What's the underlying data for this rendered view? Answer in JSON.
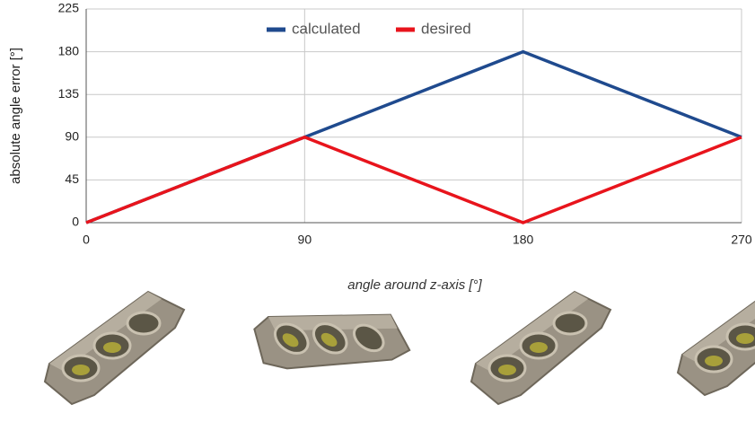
{
  "chart_data": {
    "type": "line",
    "x_label": "angle around z-axis [°]",
    "y_label": "absolute angle error [°]",
    "x": [
      0,
      90,
      180,
      270
    ],
    "series": [
      {
        "name": "calculated",
        "color": "#1f4a8e",
        "values": [
          0,
          90,
          180,
          90
        ]
      },
      {
        "name": "desired",
        "color": "#e8141c",
        "values": [
          0,
          90,
          0,
          90
        ]
      }
    ],
    "xlim": [
      0,
      270
    ],
    "xticks": [
      0,
      90,
      180,
      270
    ],
    "ylim": [
      0,
      225
    ],
    "yticks": [
      0,
      45,
      90,
      135,
      180,
      225
    ],
    "grid": true,
    "legend": "top"
  }
}
